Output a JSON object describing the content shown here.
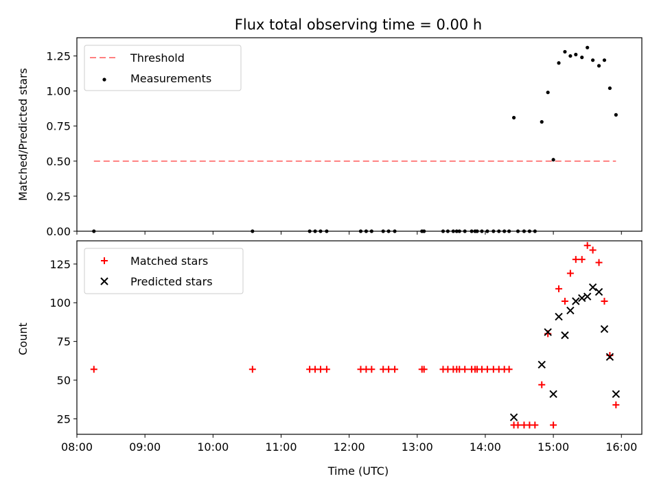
{
  "chart_data": [
    {
      "type": "scatter",
      "title": "Flux total observing time = 0.00 h",
      "xlabel": "",
      "ylabel": "Matched/Predicted stars",
      "xlim": [
        8.0,
        16.3
      ],
      "ylim": [
        0.0,
        1.38
      ],
      "yticks": [
        0.0,
        0.25,
        0.5,
        0.75,
        1.0,
        1.25
      ],
      "ytick_labels": [
        "0.00",
        "0.25",
        "0.50",
        "0.75",
        "1.00",
        "1.25"
      ],
      "legend_location": "upper-left",
      "legend": [
        "Threshold",
        "Measurements"
      ],
      "threshold": {
        "name": "Threshold",
        "value": 0.5,
        "x_range": [
          8.25,
          15.92
        ],
        "color": "#ff7f7f"
      },
      "series": [
        {
          "name": "Measurements",
          "marker": "dot",
          "color": "#000000",
          "x": [
            8.25,
            10.58,
            11.42,
            11.5,
            11.58,
            11.67,
            12.17,
            12.25,
            12.33,
            12.5,
            12.58,
            12.67,
            13.07,
            13.1,
            13.38,
            13.45,
            13.53,
            13.58,
            13.62,
            13.7,
            13.8,
            13.85,
            13.88,
            13.95,
            14.03,
            14.12,
            14.2,
            14.28,
            14.35,
            14.42,
            14.48,
            14.57,
            14.65,
            14.73,
            14.83,
            14.92,
            15.0,
            15.08,
            15.17,
            15.25,
            15.33,
            15.42,
            15.5,
            15.58,
            15.67,
            15.75,
            15.83,
            15.92
          ],
          "y": [
            0,
            0,
            0,
            0,
            0,
            0,
            0,
            0,
            0,
            0,
            0,
            0,
            0,
            0,
            0,
            0,
            0,
            0,
            0,
            0,
            0,
            0,
            0,
            0,
            0,
            0,
            0,
            0,
            0,
            0.81,
            0,
            0,
            0,
            0,
            0.78,
            0.99,
            0.51,
            1.2,
            1.28,
            1.25,
            1.26,
            1.24,
            1.31,
            1.22,
            1.18,
            1.22,
            1.02,
            0.83
          ]
        }
      ]
    },
    {
      "type": "scatter",
      "title": "",
      "xlabel": "Time (UTC)",
      "ylabel": "Count",
      "xlim": [
        8.0,
        16.3
      ],
      "ylim": [
        15,
        140
      ],
      "yticks": [
        25,
        50,
        75,
        100,
        125
      ],
      "ytick_labels": [
        "25",
        "50",
        "75",
        "100",
        "125"
      ],
      "xticks": [
        8,
        9,
        10,
        11,
        12,
        13,
        14,
        15,
        16
      ],
      "xtick_labels": [
        "08:00",
        "09:00",
        "10:00",
        "11:00",
        "12:00",
        "13:00",
        "14:00",
        "15:00",
        "16:00"
      ],
      "legend_location": "upper-left",
      "legend": [
        "Matched stars",
        "Predicted stars"
      ],
      "series": [
        {
          "name": "Matched stars",
          "marker": "plus",
          "color": "#ff0000",
          "x": [
            8.25,
            10.58,
            11.42,
            11.5,
            11.58,
            11.67,
            12.17,
            12.25,
            12.33,
            12.5,
            12.58,
            12.67,
            13.07,
            13.1,
            13.38,
            13.45,
            13.53,
            13.58,
            13.62,
            13.7,
            13.8,
            13.85,
            13.88,
            13.95,
            14.03,
            14.12,
            14.2,
            14.28,
            14.35,
            14.42,
            14.48,
            14.57,
            14.65,
            14.73,
            14.83,
            14.92,
            15.0,
            15.08,
            15.17,
            15.25,
            15.33,
            15.42,
            15.5,
            15.58,
            15.67,
            15.75,
            15.83,
            15.92
          ],
          "y": [
            57,
            57,
            57,
            57,
            57,
            57,
            57,
            57,
            57,
            57,
            57,
            57,
            57,
            57,
            57,
            57,
            57,
            57,
            57,
            57,
            57,
            57,
            57,
            57,
            57,
            57,
            57,
            57,
            57,
            21,
            21,
            21,
            21,
            21,
            47,
            80,
            21,
            109,
            101,
            119,
            128,
            128,
            137,
            134,
            126,
            101,
            66,
            34
          ]
        },
        {
          "name": "Predicted stars",
          "marker": "x",
          "color": "#000000",
          "x": [
            14.42,
            14.83,
            14.92,
            15.0,
            15.08,
            15.17,
            15.25,
            15.33,
            15.42,
            15.5,
            15.58,
            15.67,
            15.75,
            15.83,
            15.92
          ],
          "y": [
            26,
            60,
            81,
            41,
            91,
            79,
            95,
            101,
            103,
            104,
            110,
            107,
            83,
            65,
            41
          ]
        }
      ]
    }
  ]
}
